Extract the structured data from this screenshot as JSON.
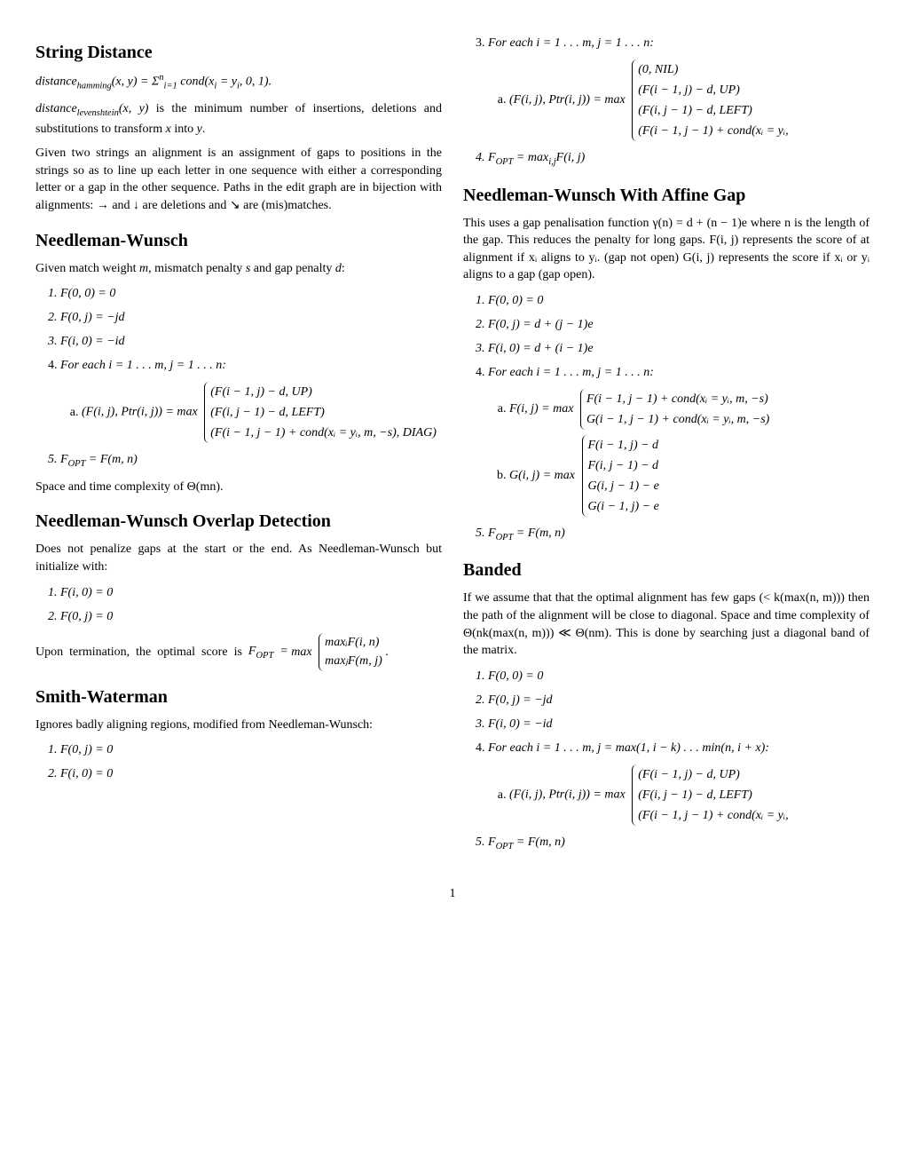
{
  "page_number": "1",
  "left": {
    "h1": "String Distance",
    "p1": "distance_hamming(x, y) = Σⁿᵢ₌₁ cond(xᵢ = yᵢ, 0, 1).",
    "p2": "distance_levenshtein(x, y) is the minimum number of insertions, deletions and substitutions to transform x into y.",
    "p3": "Given two strings an alignment is an assignment of gaps to positions in the strings so as to line up each letter in one sequence with either a corresponding letter or a gap in the other sequence. Paths in the edit graph are in bijection with alignments: → and ↓ are deletions and ↘ are (mis)matches.",
    "h2": "Needleman-Wunsch",
    "p4": "Given match weight m, mismatch penalty s and gap penalty d:",
    "nw": {
      "i1": "F(0, 0) = 0",
      "i2": "F(0, j) = −jd",
      "i3": "F(i, 0) = −id",
      "i4": "For each i = 1 . . . m, j = 1 . . . n:",
      "i4a_pre": "(F(i, j), Ptr(i, j)) = max",
      "i4a_r1": "(F(i − 1, j) − d, UP)",
      "i4a_r2": "(F(i, j − 1) − d, LEFT)",
      "i4a_r3": "(F(i − 1, j − 1) + cond(xᵢ = yᵢ, m, −s), DIAG)",
      "i5": "F_OPT = F(m, n)"
    },
    "p5": "Space and time complexity of Θ(mn).",
    "h3": "Needleman-Wunsch Overlap Detection",
    "p6": "Does not penalize gaps at the start or the end. As Needleman-Wunsch but initialize with:",
    "ov": {
      "i1": "F(i, 0) = 0",
      "i2": "F(0, j) = 0"
    },
    "p7_pre": "Upon termination, the optimal score is F_OPT = max",
    "p7_r1": "maxᵢF(i, n)",
    "p7_r2": "maxⱼF(m, j)",
    "p7_post": ".",
    "h4": "Smith-Waterman",
    "p8": "Ignores badly aligning regions, modified from Needleman-Wunsch:",
    "sw": {
      "i1": "F(0, j) = 0",
      "i2": "F(i, 0) = 0"
    }
  },
  "right": {
    "sw3": "For each i = 1 . . . m, j = 1 . . . n:",
    "sw3a_pre": "(F(i, j), Ptr(i, j)) = max",
    "sw3a_r1": "(0, NIL)",
    "sw3a_r2": "(F(i − 1, j) − d, UP)",
    "sw3a_r3": "(F(i, j − 1) − d, LEFT)",
    "sw3a_r4": "(F(i − 1, j − 1) + cond(xᵢ = yᵢ,",
    "sw4": "F_OPT = maxᵢ,ⱼF(i, j)",
    "h1": "Needleman-Wunsch With Affine Gap",
    "p1": "This uses a gap penalisation function γ(n) = d + (n − 1)e where n is the length of the gap. This reduces the penalty for long gaps. F(i, j) represents the score of at alignment if xᵢ aligns to yᵢ. (gap not open) G(i, j) represents the score if xᵢ or yᵢ aligns to a gap (gap open).",
    "ag": {
      "i1": "F(0, 0) = 0",
      "i2": "F(0, j) = d + (j − 1)e",
      "i3": "F(i, 0) = d + (i − 1)e",
      "i4": "For each i = 1 . . . m, j = 1 . . . n:",
      "i4a_pre": "F(i, j) = max",
      "i4a_r1": "F(i − 1, j − 1) + cond(xᵢ = yᵢ, m, −s)",
      "i4a_r2": "G(i − 1, j − 1) + cond(xᵢ = yᵢ, m, −s)",
      "i4b_pre": "G(i, j) = max",
      "i4b_r1": "F(i − 1, j) − d",
      "i4b_r2": "F(i, j − 1) − d",
      "i4b_r3": "G(i, j − 1) − e",
      "i4b_r4": "G(i − 1, j) − e",
      "i5": "F_OPT = F(m, n)"
    },
    "h2": "Banded",
    "p2": "If we assume that that the optimal alignment has few gaps (< k(max(n, m))) then the path of the alignment will be close to diagonal. Space and time complexity of Θ(nk(max(n, m))) ≪ Θ(nm). This is done by searching just a diagonal band of the matrix.",
    "bd": {
      "i1": "F(0, 0) = 0",
      "i2": "F(0, j) = −jd",
      "i3": "F(i, 0) = −id",
      "i4": "For each i = 1 . . . m, j = max(1, i − k) . . . min(n, i + x):",
      "i4a_pre": "(F(i, j), Ptr(i, j)) = max",
      "i4a_r1": "(F(i − 1, j) − d, UP)",
      "i4a_r2": "(F(i, j − 1) − d, LEFT)",
      "i4a_r3": "(F(i − 1, j − 1) + cond(xᵢ = yᵢ,",
      "i5": "F_OPT = F(m, n)"
    }
  }
}
